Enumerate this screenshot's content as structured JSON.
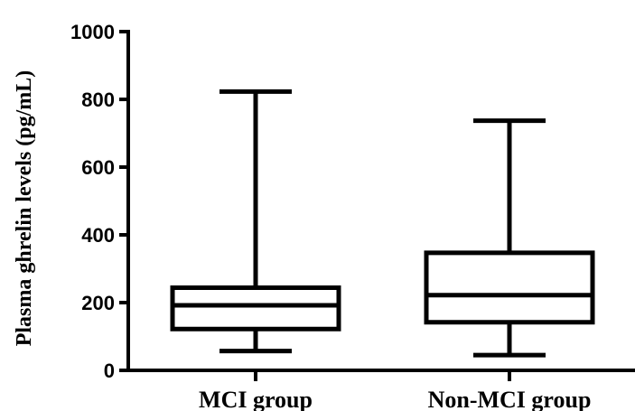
{
  "chart_data": {
    "type": "box",
    "ylabel": "Plasma ghrelin levels (pg/mL)",
    "xlabel": "",
    "ylim": [
      0,
      1000
    ],
    "yticks": [
      "0",
      "200",
      "400",
      "600",
      "800",
      "1000"
    ],
    "categories": [
      "MCI group",
      "Non-MCI group"
    ],
    "boxes": [
      {
        "category": "MCI group",
        "min": 57,
        "q1": 122,
        "median": 192,
        "q3": 244,
        "max": 823
      },
      {
        "category": "Non-MCI group",
        "min": 45,
        "q1": 142,
        "median": 222,
        "q3": 347,
        "max": 737
      }
    ],
    "grid": false,
    "colors": {
      "stroke": "#000000",
      "background": "#ffffff"
    }
  }
}
